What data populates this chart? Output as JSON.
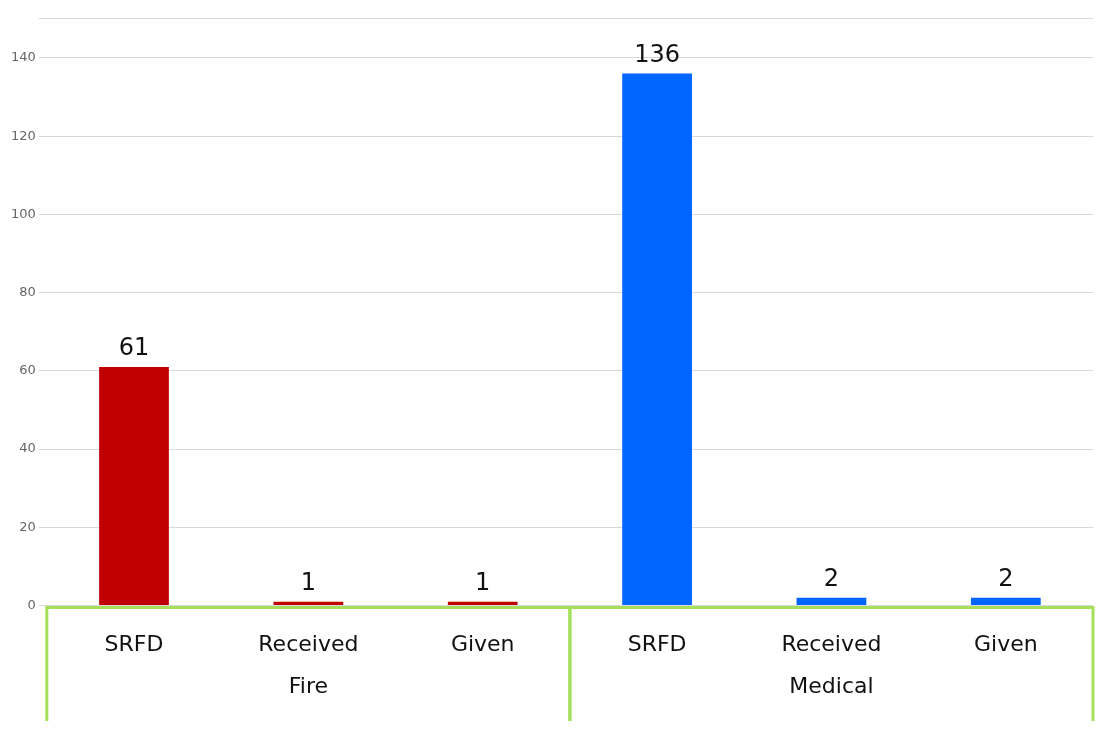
{
  "chart_data": {
    "type": "bar",
    "categories": [
      "SRFD",
      "Received",
      "Given",
      "SRFD",
      "Received",
      "Given"
    ],
    "series": [
      {
        "color": "#c00000",
        "values": [
          61,
          1,
          1,
          null,
          null,
          null
        ]
      },
      {
        "color": "#0066ff",
        "values": [
          null,
          null,
          null,
          136,
          2,
          2
        ]
      }
    ],
    "annotations": [
      "Fire",
      "Medical"
    ],
    "ylim": [
      0,
      150
    ],
    "yticks": [
      0,
      20,
      40,
      60,
      80,
      100,
      120,
      140,
      {
        "value": 150,
        "label": null
      }
    ],
    "grid": "y",
    "data_labels": true,
    "legend": false
  }
}
